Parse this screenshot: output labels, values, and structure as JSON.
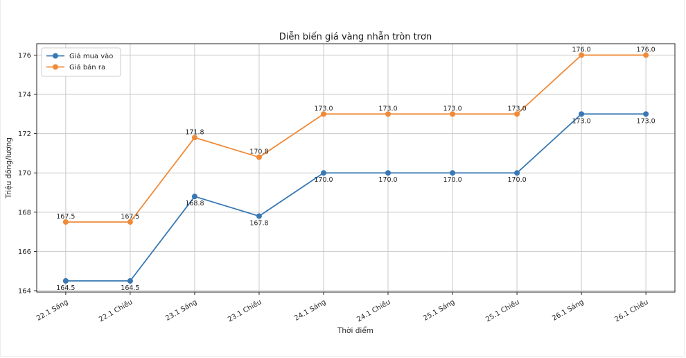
{
  "figure": {
    "background": "#ffffff",
    "border_color": "#ececec",
    "plot_border_color": "#262626",
    "grid_color": "#c9c9c9",
    "text_color": "#262626",
    "label_color": "#1f1f1f"
  },
  "chart_data": {
    "type": "line",
    "title": "Diễn biến giá vàng nhẫn tròn trơn",
    "xlabel": "Thời điểm",
    "ylabel": "Triệu đồng/lượng",
    "categories": [
      "22.1 Sáng",
      "22.1 Chiều",
      "23.1 Sáng",
      "23.1 Chiều",
      "24.1 Sáng",
      "24.1 Chiều",
      "25.1 Sáng",
      "25.1 Chiều",
      "26.1 Sáng",
      "26.1 Chiều"
    ],
    "series": [
      {
        "name": "Giá mua vào",
        "color": "#3878b4",
        "marker": "circle",
        "values": [
          164.5,
          164.5,
          168.8,
          167.8,
          170.0,
          170.0,
          170.0,
          170.0,
          173.0,
          173.0
        ],
        "label_position": "below"
      },
      {
        "name": "Giá bán ra",
        "color": "#f08a38",
        "marker": "circle",
        "values": [
          167.5,
          167.5,
          171.8,
          170.8,
          173.0,
          173.0,
          173.0,
          173.0,
          176.0,
          176.0
        ],
        "label_position": "above"
      }
    ],
    "y_ticks": [
      164,
      166,
      168,
      170,
      172,
      174,
      176
    ],
    "ylim": [
      163.93,
      176.58
    ],
    "x_margin": 0.45,
    "grid": true,
    "legend_position": "upper left",
    "point_label_decimals": 1
  }
}
